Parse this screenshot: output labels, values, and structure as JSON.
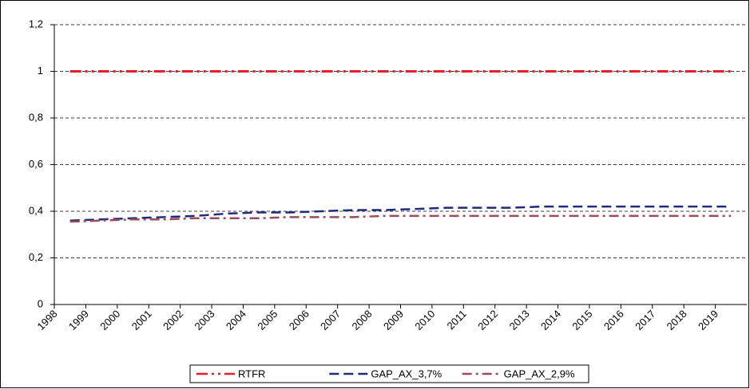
{
  "chart_data": {
    "type": "line",
    "categories": [
      "1998",
      "1999",
      "2000",
      "2001",
      "2002",
      "2003",
      "2004",
      "2005",
      "2006",
      "2007",
      "2008",
      "2009",
      "2010",
      "2011",
      "2012",
      "2013",
      "2014",
      "2015",
      "2016",
      "2017",
      "2018",
      "2019"
    ],
    "series": [
      {
        "name": "RTFR",
        "color": "#e3202a",
        "dash": "14,5,3,5,3,5",
        "values": [
          1,
          1,
          1,
          1,
          1,
          1,
          1,
          1,
          1,
          1,
          1,
          1,
          1,
          1,
          1,
          1,
          1,
          1,
          1,
          1,
          1,
          1
        ]
      },
      {
        "name": "GAP_AX_3,7%",
        "color": "#1f2a7a",
        "dash": "12,6",
        "values": [
          0.36,
          0.365,
          0.37,
          0.375,
          0.38,
          0.39,
          0.395,
          0.395,
          0.4,
          0.405,
          0.405,
          0.41,
          0.415,
          0.415,
          0.415,
          0.42,
          0.42,
          0.42,
          0.42,
          0.42,
          0.42,
          0.42
        ]
      },
      {
        "name": "GAP_AX_2,9%",
        "color": "#9e4a5c",
        "dash": "12,5,3,5",
        "values": [
          0.355,
          0.36,
          0.365,
          0.365,
          0.37,
          0.37,
          0.37,
          0.375,
          0.375,
          0.375,
          0.38,
          0.38,
          0.38,
          0.38,
          0.38,
          0.38,
          0.38,
          0.38,
          0.38,
          0.38,
          0.38,
          0.38
        ]
      }
    ],
    "ylim": [
      0,
      1.2
    ],
    "yticks": [
      0,
      {
        "value": 0.2,
        "label": "0,2"
      },
      {
        "value": 0.4,
        "label": "0,4"
      },
      {
        "value": 0.6,
        "label": "0,6"
      },
      {
        "value": 0.8,
        "label": "0,8"
      },
      1,
      {
        "value": 1.2,
        "label": "1,2"
      }
    ],
    "grid": true,
    "legend": "bottom"
  }
}
